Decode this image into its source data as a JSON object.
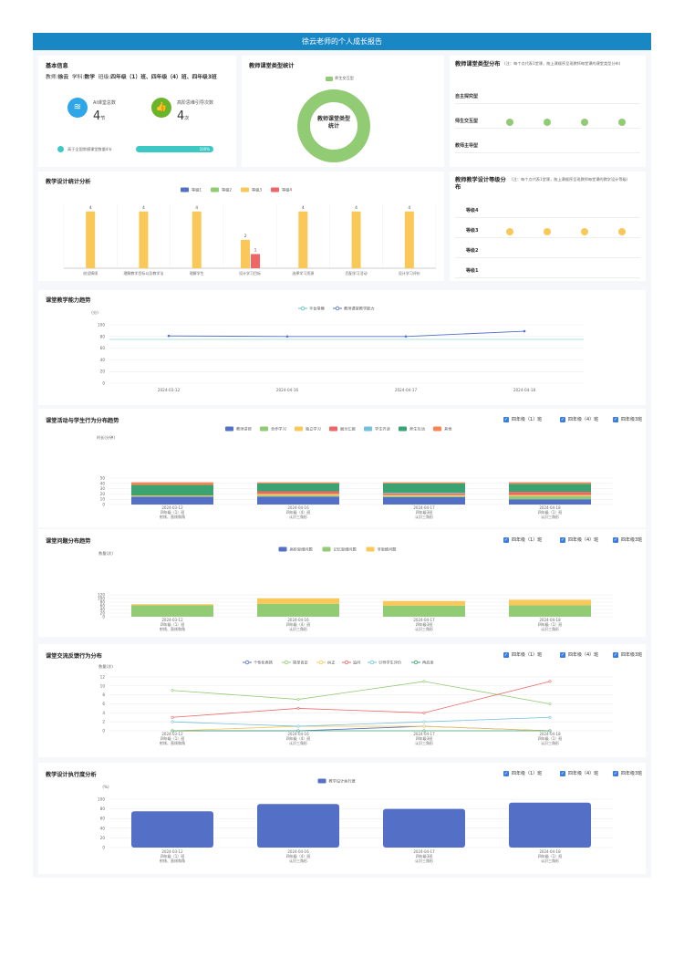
{
  "header": {
    "title": "徐云老师的个人成长报告"
  },
  "basic": {
    "title": "基本信息",
    "teacher_label": "教师:",
    "teacher": "徐云",
    "subject_label": "学科:",
    "subject": "数学",
    "class_label": "班级:",
    "classes": "四年级（1）班、四年级（4）班、四年级3班",
    "ai_label": "AI课堂总数",
    "ai_value": "4",
    "ai_unit": "节",
    "high_label": "高阶思维引导次数",
    "high_value": "4",
    "high_unit": "次",
    "progress_label": "高于全国常模课堂数量4节",
    "progress_value": "100%",
    "progress_fraction": 1.0
  },
  "type_stats": {
    "title": "教师课堂类型统计",
    "legend": "师生交互型",
    "center_line1": "教师课堂类型",
    "center_line2": "统计"
  },
  "type_dist": {
    "title": "教师课堂类型分布",
    "note": "(注：每个点代表1堂课，按上课顺序呈现教师每堂课的课堂类型分布)",
    "rows": [
      "自主探究型",
      "师生交互型",
      "教师主导型"
    ],
    "dots_row": 1,
    "dot_count": 4
  },
  "design_stats": {
    "title": "教学设计统计分析",
    "legend": [
      "等级1",
      "等级2",
      "等级3",
      "等级4"
    ],
    "colors": [
      "#5470c6",
      "#91cc75",
      "#fac858",
      "#ee6666"
    ],
    "categories": [
      "创设情境",
      "理解教学目标以及教学法",
      "理解学生",
      "设计学习目标",
      "选择学习资源",
      "匹配学习活动",
      "设计学习评价"
    ],
    "level3": [
      4,
      4,
      4,
      2,
      4,
      4,
      4
    ],
    "level4": [
      0,
      0,
      0,
      1,
      0,
      0,
      0
    ]
  },
  "design_level": {
    "title": "教师教学设计等级分布",
    "note": "(注：每个点代表1堂课，按上课顺序呈现教师每堂课的教学设计等级)",
    "rows": [
      "等级4",
      "等级3",
      "等级2",
      "等级1"
    ],
    "dots_row": 1,
    "dot_count": 4
  },
  "ability": {
    "title": "课堂教学能力趋势",
    "unit": "(分)",
    "legend": [
      "平台常模",
      "教师课堂教学能力"
    ],
    "yticks": [
      "100",
      "80",
      "60",
      "40",
      "20",
      "0"
    ],
    "chart_data": {
      "type": "line",
      "x": [
        "2024-03-12",
        "2024-04-16",
        "2024-04-17",
        "2024-04-18"
      ],
      "series": [
        {
          "name": "教师课堂教学能力",
          "values": [
            81,
            80,
            80,
            89
          ],
          "color": "#5470c6"
        },
        {
          "name": "平台常模",
          "values": [
            75,
            75,
            75,
            75
          ],
          "color": "#5bc2c4"
        }
      ],
      "ylim": [
        0,
        100
      ]
    }
  },
  "activity": {
    "title": "课堂活动与学生行为分布趋势",
    "unit": "时长(分钟)",
    "checkboxes": [
      "四年级（1）班",
      "四年级（4）班",
      "四年级3班"
    ],
    "legend": [
      "教师讲授",
      "合作学习",
      "独立学习",
      "展示汇报",
      "学生齐读",
      "师生互动",
      "其他"
    ],
    "colors": [
      "#5470c6",
      "#91cc75",
      "#fac858",
      "#ee6666",
      "#73c0de",
      "#3ba272",
      "#fc8452"
    ],
    "yticks": [
      "50",
      "40",
      "30",
      "20",
      "10",
      "0"
    ],
    "categories": [
      [
        "2024-03-12",
        "四年级（1）班",
        "射线、直线和角"
      ],
      [
        "2024-04-16",
        "四年级（4）班",
        "认识三角形"
      ],
      [
        "2024-04-17",
        "四年级3班",
        "认识三角形"
      ],
      [
        "2024-04-18",
        "四年级（1）班",
        "认识三角形"
      ]
    ],
    "chart_data": {
      "type": "bar",
      "stacked": true,
      "series": [
        {
          "name": "教师讲授",
          "values": [
            15,
            15,
            14,
            10
          ]
        },
        {
          "name": "合作学习",
          "values": [
            0,
            2,
            2,
            6
          ]
        },
        {
          "name": "独立学习",
          "values": [
            2,
            3,
            2,
            2
          ]
        },
        {
          "name": "展示汇报",
          "values": [
            0,
            5,
            3,
            6
          ]
        },
        {
          "name": "学生齐读",
          "values": [
            0,
            0,
            1,
            0
          ]
        },
        {
          "name": "师生互动",
          "values": [
            20,
            15,
            18,
            15
          ]
        },
        {
          "name": "其他",
          "values": [
            5,
            2,
            2,
            3
          ]
        }
      ],
      "ylim": [
        0,
        50
      ]
    }
  },
  "questions": {
    "title": "课堂问题分布趋势",
    "unit": "数量(次)",
    "checkboxes": [
      "四年级（1）班",
      "四年级（4）班",
      "四年级3班"
    ],
    "legend": [
      "高阶思维问题",
      "记忆思维问题",
      "非思维问题"
    ],
    "colors": [
      "#5470c6",
      "#91cc75",
      "#fac858"
    ],
    "yticks": [
      "120",
      "100",
      "80",
      "60",
      "40",
      "20",
      "0"
    ],
    "categories": [
      [
        "2024-03-12",
        "四年级（1）班",
        "射线、直线和角"
      ],
      [
        "2024-04-16",
        "四年级（4）班",
        "认识三角形"
      ],
      [
        "2024-04-17",
        "四年级3班",
        "认识三角形"
      ],
      [
        "2024-04-18",
        "四年级（1）班",
        "认识三角形"
      ]
    ],
    "chart_data": {
      "type": "bar",
      "stacked": true,
      "series": [
        {
          "name": "高阶思维问题",
          "values": [
            1,
            1,
            1,
            1
          ]
        },
        {
          "name": "记忆思维问题",
          "values": [
            62,
            70,
            60,
            62
          ]
        },
        {
          "name": "非思维问题",
          "values": [
            6,
            30,
            25,
            30
          ]
        }
      ],
      "ylim": [
        0,
        120
      ]
    }
  },
  "feedback": {
    "title": "课堂交流反馈行为分布",
    "unit": "数量(次)",
    "checkboxes": [
      "四年级（1）班",
      "四年级（4）班",
      "四年级3班"
    ],
    "legend": [
      "个性化表扬",
      "简单肯定",
      "纠正",
      "追问",
      "引导学生评价",
      "再启发"
    ],
    "colors": [
      "#5470c6",
      "#91cc75",
      "#fac858",
      "#ee6666",
      "#73c0de",
      "#3ba272"
    ],
    "yticks": [
      "12",
      "10",
      "8",
      "6",
      "4",
      "2",
      "0"
    ],
    "categories": [
      [
        "2024-03-12",
        "四年级（1）班",
        "射线、直线和角"
      ],
      [
        "2024-04-16",
        "四年级（4）班",
        "认识三角形"
      ],
      [
        "2024-04-17",
        "四年级3班",
        "认识三角形"
      ],
      [
        "2024-04-18",
        "四年级（1）班",
        "认识三角形"
      ]
    ],
    "chart_data": {
      "type": "line",
      "series": [
        {
          "name": "个性化表扬",
          "values": [
            0,
            0,
            1,
            0
          ]
        },
        {
          "name": "简单肯定",
          "values": [
            9,
            7,
            11,
            6
          ]
        },
        {
          "name": "纠正",
          "values": [
            0,
            1,
            1,
            0
          ]
        },
        {
          "name": "追问",
          "values": [
            3,
            5,
            4,
            11
          ]
        },
        {
          "name": "引导学生评价",
          "values": [
            2,
            1,
            2,
            3
          ]
        },
        {
          "name": "再启发",
          "values": [
            0,
            0,
            0,
            0
          ]
        }
      ],
      "ylim": [
        0,
        12
      ]
    }
  },
  "execution": {
    "title": "教学设计执行度分析",
    "unit": "(%)",
    "checkboxes": [
      "四年级（1）班",
      "四年级（4）班",
      "四年级3班"
    ],
    "legend": [
      "教学设计执行度"
    ],
    "yticks": [
      "100",
      "80",
      "60",
      "40",
      "20",
      "0"
    ],
    "categories": [
      [
        "2024-03-12",
        "四年级（1）班",
        "射线、直线和角"
      ],
      [
        "2024-04-16",
        "四年级（4）班",
        "认识三角形"
      ],
      [
        "2024-04-17",
        "四年级3班",
        "认识三角形"
      ],
      [
        "2024-04-18",
        "四年级（1）班",
        "认识三角形"
      ]
    ],
    "chart_data": {
      "type": "bar",
      "series": [
        {
          "name": "教学设计执行度",
          "values": [
            75,
            90,
            80,
            93
          ]
        }
      ],
      "ylim": [
        0,
        100
      ]
    }
  }
}
